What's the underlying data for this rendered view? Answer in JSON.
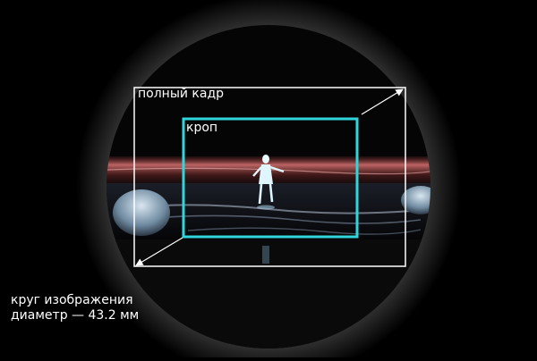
{
  "labels": {
    "full_frame": "полный кадр",
    "crop": "кроп",
    "image_circle_line1": "круг изображения",
    "image_circle_line2": "диаметр — 43.2 мм"
  },
  "colors": {
    "background": "#000000",
    "full_frame_border": "#ffffff",
    "crop_border": "#2fd6dc",
    "label_text": "#ffffff",
    "water_glow": "#d26b6b"
  }
}
